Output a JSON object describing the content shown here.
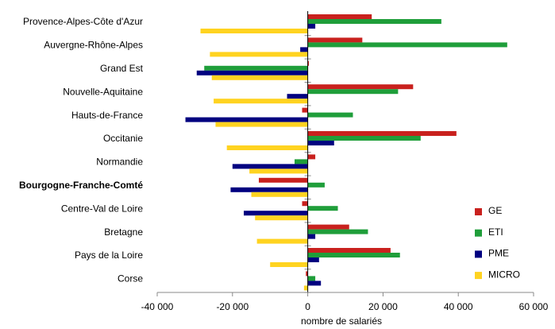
{
  "chart_data": {
    "type": "barh",
    "categories": [
      "Provence-Alpes-Côte d'Azur",
      "Auvergne-Rhône-Alpes",
      "Grand Est",
      "Nouvelle-Aquitaine",
      "Hauts-de-France",
      "Occitanie",
      "Normandie",
      "Bourgogne-Franche-Comté",
      "Centre-Val de Loire",
      "Bretagne",
      "Pays de la Loire",
      "Corse"
    ],
    "highlight_index": 7,
    "series": [
      {
        "name": "GE",
        "color": "#c9211e",
        "values": [
          17000,
          14500,
          300,
          28000,
          -1500,
          39500,
          2000,
          -13000,
          -1500,
          11000,
          22000,
          -500
        ]
      },
      {
        "name": "ETI",
        "color": "#1f9e3a",
        "values": [
          35500,
          53000,
          -27500,
          24000,
          12000,
          30000,
          -3500,
          4500,
          8000,
          16000,
          24500,
          2000
        ]
      },
      {
        "name": "PME",
        "color": "#000080",
        "values": [
          2000,
          -2000,
          -29500,
          -5500,
          -32500,
          7000,
          -20000,
          -20500,
          -17000,
          2000,
          3000,
          3500
        ]
      },
      {
        "name": "MICRO",
        "color": "#ffd320",
        "values": [
          -28500,
          -26000,
          -25500,
          -25000,
          -24500,
          -21500,
          -15500,
          -15000,
          -14000,
          -13500,
          -10000,
          -1000
        ]
      }
    ],
    "xlabel": "nombre de salariés",
    "xlim": [
      -40000,
      60000
    ],
    "xticks": [
      {
        "value": -40000,
        "label": "-40 000"
      },
      {
        "value": -20000,
        "label": "-20 000"
      },
      0,
      {
        "value": 20000,
        "label": "20 000"
      },
      {
        "value": 40000,
        "label": "40 000"
      },
      {
        "value": 60000,
        "label": "60 000"
      }
    ],
    "legend": "lower right"
  }
}
